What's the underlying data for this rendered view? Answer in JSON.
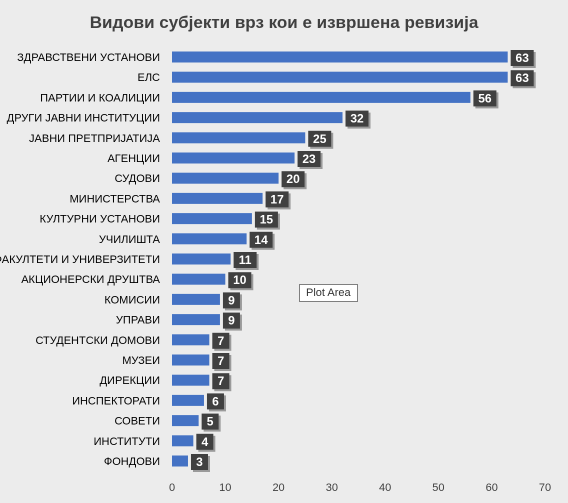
{
  "tooltip": {
    "text": "Plot Area"
  },
  "colors": {
    "bar": "#4472c4",
    "label_bg": "#404040",
    "background": "#ececec"
  },
  "chart_data": {
    "type": "bar",
    "orientation": "horizontal",
    "title": "Видови субјекти врз кои е извршена ревизија",
    "xlabel": "",
    "ylabel": "",
    "xlim": [
      0,
      70
    ],
    "x_ticks": [
      0,
      10,
      20,
      30,
      40,
      50,
      60,
      70
    ],
    "grid": false,
    "legend": "none",
    "categories": [
      "ЗДРАВСТВЕНИ УСТАНОВИ",
      "ЕЛС",
      "ПАРТИИ И КОАЛИЦИИ",
      "ДРУГИ ЈАВНИ ИНСТИТУЦИИ",
      "ЈАВНИ ПРЕТПРИЈАТИЈА",
      "АГЕНЦИИ",
      "СУДОВИ",
      "МИНИСТЕРСТВА",
      "КУЛТУРНИ УСТАНОВИ",
      "УЧИЛИШТА",
      "ФАКУЛТЕТИ И УНИВЕРЗИТЕТИ",
      "АКЦИОНЕРСКИ ДРУШТВА",
      "КОМИСИИ",
      "УПРАВИ",
      "СТУДЕНТСКИ ДОМОВИ",
      "МУЗЕИ",
      "ДИРЕКЦИИ",
      "ИНСПЕКТОРАТИ",
      "СОВЕТИ",
      "ИНСТИТУТИ",
      "ФОНДОВИ"
    ],
    "values": [
      63,
      63,
      56,
      32,
      25,
      23,
      20,
      17,
      15,
      14,
      11,
      10,
      9,
      9,
      7,
      7,
      7,
      6,
      5,
      4,
      3
    ]
  }
}
